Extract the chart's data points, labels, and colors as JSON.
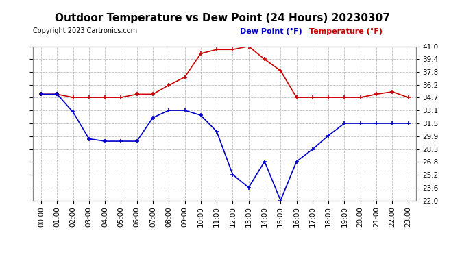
{
  "title": "Outdoor Temperature vs Dew Point (24 Hours) 20230307",
  "copyright": "Copyright 2023 Cartronics.com",
  "legend_dew": "Dew Point (°F)",
  "legend_temp": "Temperature (°F)",
  "hours": [
    "00:00",
    "01:00",
    "02:00",
    "03:00",
    "04:00",
    "05:00",
    "06:00",
    "07:00",
    "08:00",
    "09:00",
    "10:00",
    "11:00",
    "12:00",
    "13:00",
    "14:00",
    "15:00",
    "16:00",
    "17:00",
    "18:00",
    "19:00",
    "20:00",
    "21:00",
    "22:00",
    "23:00"
  ],
  "temperature": [
    35.1,
    35.1,
    34.7,
    34.7,
    34.7,
    34.7,
    35.1,
    35.1,
    36.2,
    37.2,
    40.1,
    40.6,
    40.6,
    41.0,
    39.4,
    38.0,
    34.7,
    34.7,
    34.7,
    34.7,
    34.7,
    35.1,
    35.4,
    34.7
  ],
  "dew_point": [
    35.1,
    35.1,
    32.9,
    29.6,
    29.3,
    29.3,
    29.3,
    32.2,
    33.1,
    33.1,
    32.5,
    30.5,
    25.2,
    23.6,
    26.8,
    22.0,
    26.8,
    28.3,
    30.0,
    31.5,
    31.5,
    31.5,
    31.5,
    31.5
  ],
  "temp_color": "#cc0000",
  "dew_color": "#0000cc",
  "ylim_min": 22.0,
  "ylim_max": 41.0,
  "yticks": [
    22.0,
    23.6,
    25.2,
    26.8,
    28.3,
    29.9,
    31.5,
    33.1,
    34.7,
    36.2,
    37.8,
    39.4,
    41.0
  ],
  "bg_color": "#ffffff",
  "grid_color": "#aaaaaa",
  "title_fontsize": 11,
  "copyright_fontsize": 7,
  "legend_fontsize": 8,
  "tick_fontsize": 7.5
}
